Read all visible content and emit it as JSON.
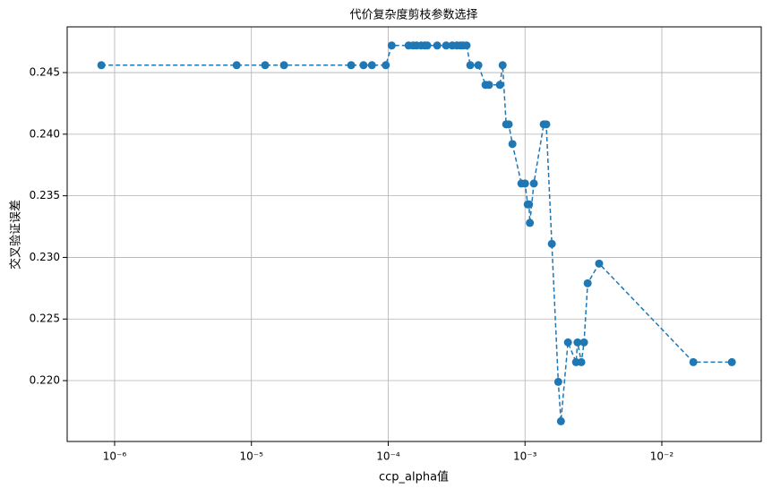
{
  "chart_data": {
    "type": "line",
    "title": "代价复杂度剪枝参数选择",
    "x_label": "ccp_alpha值",
    "y_label": "交叉验证误差",
    "x_scale": "log",
    "grid": true,
    "line_style": "dashed",
    "marker": "circle",
    "xlim": [
      4.5e-07,
      0.0533
    ],
    "ylim": [
      0.21506,
      0.24871
    ],
    "xticks": [
      {
        "value": 1e-06,
        "label": "10⁻⁶"
      },
      {
        "value": 1e-05,
        "label": "10⁻⁵"
      },
      {
        "value": 0.0001,
        "label": "10⁻⁴"
      },
      {
        "value": 0.001,
        "label": "10⁻³"
      },
      {
        "value": 0.01,
        "label": "10⁻²"
      }
    ],
    "yticks": [
      {
        "value": 0.22,
        "label": "0.220"
      },
      {
        "value": 0.225,
        "label": "0.225"
      },
      {
        "value": 0.23,
        "label": "0.230"
      },
      {
        "value": 0.235,
        "label": "0.235"
      },
      {
        "value": 0.24,
        "label": "0.240"
      },
      {
        "value": 0.245,
        "label": "0.245"
      }
    ],
    "series": [
      {
        "color": "#1f77b4",
        "x": [
          8e-07,
          7.8e-06,
          1.26e-05,
          1.73e-05,
          5.36e-05,
          6.6e-05,
          7.6e-05,
          9.6e-05,
          0.000106,
          0.000141,
          0.000152,
          0.000161,
          0.000174,
          0.000185,
          0.000193,
          0.000228,
          0.000265,
          0.000294,
          0.000318,
          0.000337,
          0.000352,
          0.000374,
          0.000398,
          0.000456,
          0.000514,
          0.000546,
          0.000655,
          0.000686,
          0.000728,
          0.00076,
          0.000809,
          0.00094,
          0.001,
          0.001046,
          0.00107,
          0.001085,
          0.00116,
          0.00137,
          0.00143,
          0.00157,
          0.00175,
          0.00183,
          0.00206,
          0.00236,
          0.00242,
          0.00258,
          0.0027,
          0.00287,
          0.00348,
          0.017,
          0.0325
        ],
        "values": [
          0.2456,
          0.2456,
          0.2456,
          0.2456,
          0.2456,
          0.2456,
          0.2456,
          0.2456,
          0.2472,
          0.2472,
          0.2472,
          0.2472,
          0.2472,
          0.2472,
          0.2472,
          0.2472,
          0.2472,
          0.2472,
          0.2472,
          0.2472,
          0.2472,
          0.2472,
          0.2456,
          0.2456,
          0.244,
          0.244,
          0.244,
          0.2456,
          0.2408,
          0.2408,
          0.2392,
          0.236,
          0.236,
          0.2343,
          0.2343,
          0.2328,
          0.236,
          0.2408,
          0.2408,
          0.2311,
          0.2199,
          0.2167,
          0.2231,
          0.2215,
          0.2231,
          0.2215,
          0.2231,
          0.2279,
          0.2295,
          0.2215,
          0.2215
        ]
      }
    ]
  }
}
